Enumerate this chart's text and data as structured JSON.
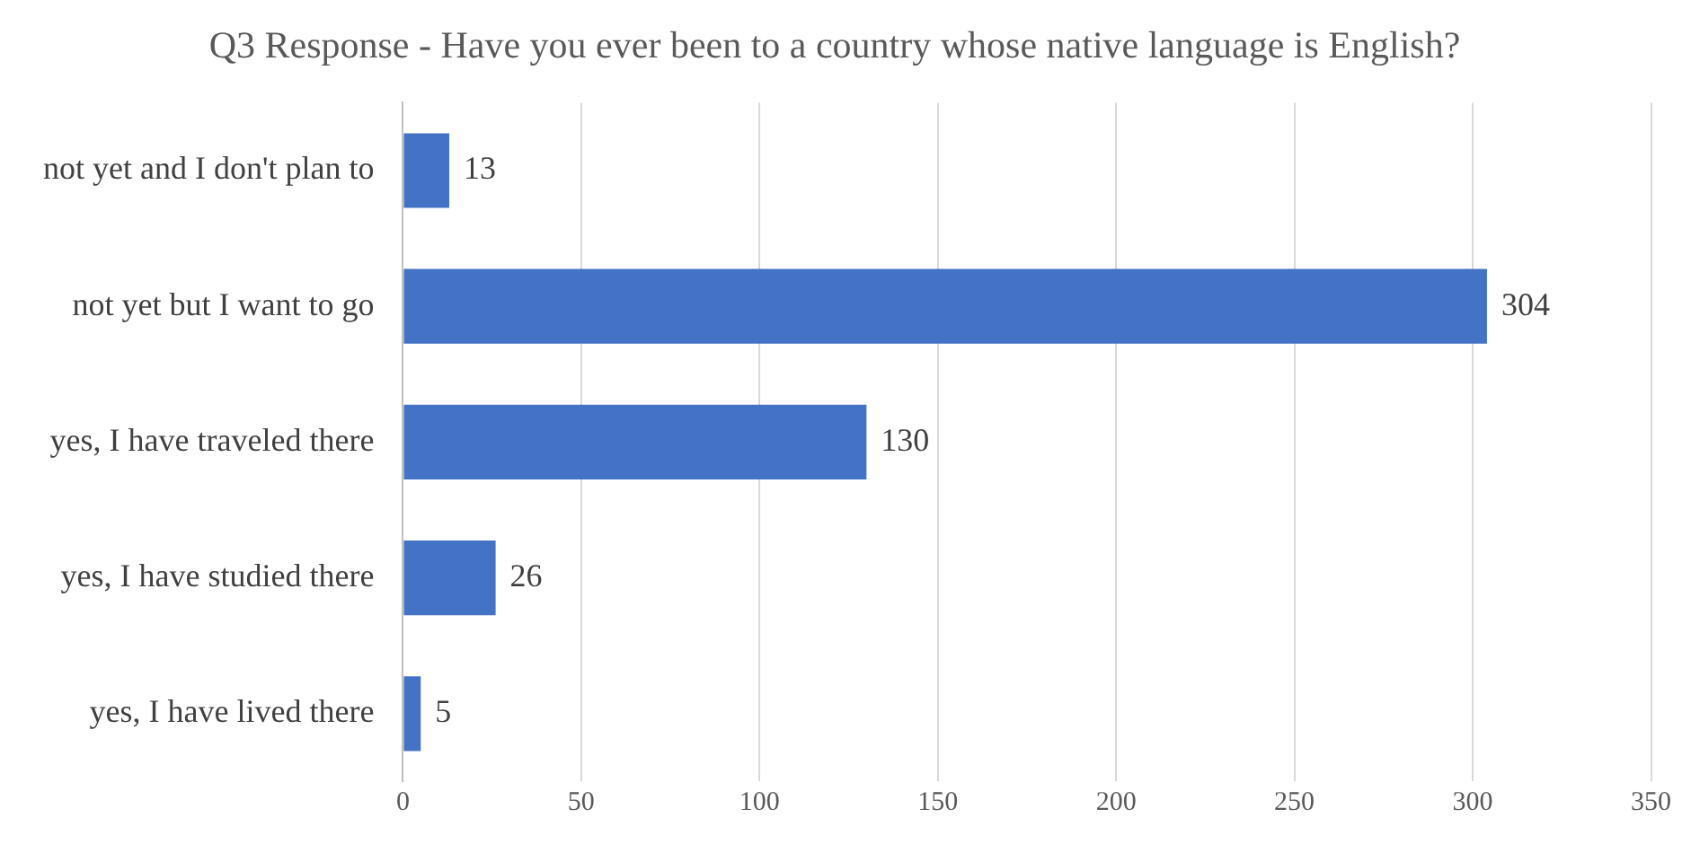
{
  "chart_data": {
    "type": "bar",
    "orientation": "horizontal",
    "title": "Q3 Response - Have you ever been to a country whose native language is English?",
    "categories": [
      "not yet and I don't plan to",
      "not yet but I want to go",
      "yes, I have traveled there",
      "yes, I have studied there",
      "yes, I have lived there"
    ],
    "values": [
      13,
      304,
      130,
      26,
      5
    ],
    "color": "#4472c4",
    "data_labels": true,
    "xlim": [
      0,
      350
    ],
    "xticks": [
      0,
      50,
      100,
      150,
      200,
      250,
      300,
      350
    ],
    "grid": "x",
    "legend": false
  }
}
